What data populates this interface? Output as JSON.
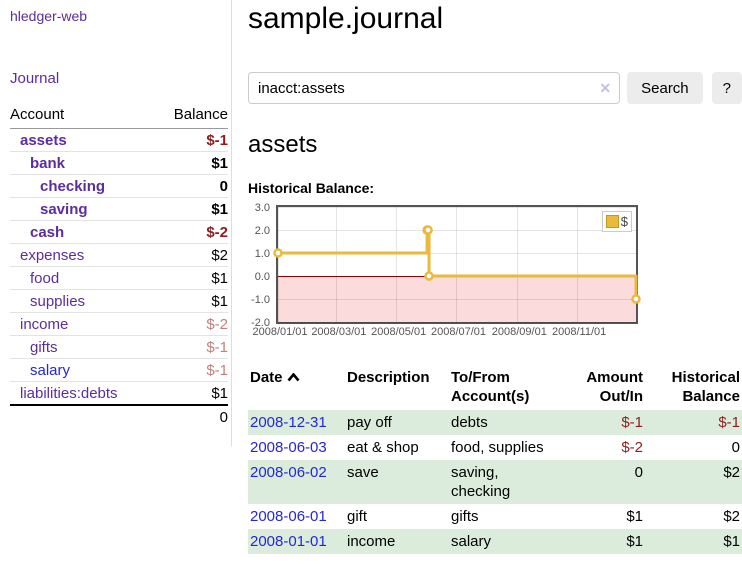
{
  "theme": {
    "link_purple": "#5c2d9e",
    "link_blue": "#2525dd",
    "negative_strong": "#8f1d1d",
    "negative_dim": "#c2807c",
    "row_shade_green": "#dcecdc",
    "chart_gold": "#e9ba3d",
    "chart_negative_fill": "#fbdbdb",
    "chart_zero_line": "#8b0000"
  },
  "sidebar": {
    "brand": "hledger-web",
    "journal_link": "Journal",
    "accounts_table": {
      "headers": {
        "account": "Account",
        "balance": "Balance"
      },
      "accounts": [
        {
          "name": "assets",
          "indent": 1,
          "bold": true,
          "blue": false,
          "balance": "$-1",
          "balance_style": "negstrong"
        },
        {
          "name": "bank",
          "indent": 2,
          "bold": true,
          "blue": false,
          "balance": "$1",
          "balance_style": "pos"
        },
        {
          "name": "checking",
          "indent": 3,
          "bold": true,
          "blue": false,
          "balance": "0",
          "balance_style": "pos"
        },
        {
          "name": "saving",
          "indent": 3,
          "bold": true,
          "blue": false,
          "balance": "$1",
          "balance_style": "pos"
        },
        {
          "name": "cash",
          "indent": 2,
          "bold": true,
          "blue": false,
          "balance": "$-2",
          "balance_style": "negstrong"
        },
        {
          "name": "expenses",
          "indent": 1,
          "bold": false,
          "blue": false,
          "balance": "$2",
          "balance_style": "pos"
        },
        {
          "name": "food",
          "indent": 2,
          "bold": false,
          "blue": false,
          "balance": "$1",
          "balance_style": "pos"
        },
        {
          "name": "supplies",
          "indent": 2,
          "bold": false,
          "blue": false,
          "balance": "$1",
          "balance_style": "pos"
        },
        {
          "name": "income",
          "indent": 1,
          "bold": false,
          "blue": false,
          "balance": "$-2",
          "balance_style": "negdim"
        },
        {
          "name": "gifts",
          "indent": 2,
          "bold": false,
          "blue": false,
          "balance": "$-1",
          "balance_style": "negdim"
        },
        {
          "name": "salary",
          "indent": 2,
          "bold": false,
          "blue": true,
          "balance": "$-1",
          "balance_style": "negdim"
        },
        {
          "name": "liabilities:debts",
          "indent": 1,
          "bold": false,
          "blue": false,
          "balance": "$1",
          "balance_style": "pos"
        }
      ],
      "total": "0"
    }
  },
  "header": {
    "title": "sample.journal"
  },
  "search": {
    "query": "inacct:assets",
    "clear_icon": "✕",
    "button_label": "Search",
    "help_button_label": "?"
  },
  "account_page": {
    "heading": "assets",
    "chart_label": "Historical Balance:"
  },
  "chart_data": {
    "type": "line",
    "title": "Historical Balance:",
    "legend": {
      "label": "$",
      "position": "top-right"
    },
    "xlim": [
      0,
      365
    ],
    "ylim": [
      -2,
      3
    ],
    "grid": true,
    "series": [
      {
        "name": "$",
        "step": true,
        "points": [
          {
            "date": "2008-01-01",
            "day": 0,
            "value": 1
          },
          {
            "date": "2008-06-01",
            "day": 152,
            "value": 2
          },
          {
            "date": "2008-06-02",
            "day": 153,
            "value": 2
          },
          {
            "date": "2008-06-03",
            "day": 154,
            "value": 0
          },
          {
            "date": "2008-12-31",
            "day": 365,
            "value": -1
          }
        ]
      }
    ],
    "x_ticks": [
      {
        "day": 0,
        "label": "2008/01/01"
      },
      {
        "day": 60,
        "label": "2008/03/01"
      },
      {
        "day": 121,
        "label": "2008/05/01"
      },
      {
        "day": 182,
        "label": "2008/07/01"
      },
      {
        "day": 244,
        "label": "2008/09/01"
      },
      {
        "day": 305,
        "label": "2008/11/01"
      }
    ],
    "y_ticks": [
      3.0,
      2.0,
      1.0,
      0.0,
      -1.0,
      -2.0
    ],
    "colors": {
      "line": "#e9ba3d",
      "marker_fill": "#ffffff",
      "negative_fill": "#fbdbdb",
      "zero_line": "#8b0000",
      "border": "#545454"
    }
  },
  "register": {
    "headers": {
      "date": "Date",
      "description": "Description",
      "accounts": "To/From\nAccount(s)",
      "amount": "Amount\nOut/In",
      "balance": "Historical\nBalance"
    },
    "rows": [
      {
        "date": "2008-12-31",
        "description": "pay off",
        "accounts": "debts",
        "amount": "$-1",
        "amount_style": "negstrong",
        "balance": "$-1",
        "balance_style": "negstrong",
        "shaded": true
      },
      {
        "date": "2008-06-03",
        "description": "eat & shop",
        "accounts": "food, supplies",
        "amount": "$-2",
        "amount_style": "negstrong",
        "balance": "0",
        "balance_style": "pos",
        "shaded": false
      },
      {
        "date": "2008-06-02",
        "description": "save",
        "accounts": "saving,\nchecking",
        "amount": "0",
        "amount_style": "pos",
        "balance": "$2",
        "balance_style": "pos",
        "shaded": true
      },
      {
        "date": "2008-06-01",
        "description": "gift",
        "accounts": "gifts",
        "amount": "$1",
        "amount_style": "pos",
        "balance": "$2",
        "balance_style": "pos",
        "shaded": false
      },
      {
        "date": "2008-01-01",
        "description": "income",
        "accounts": "salary",
        "amount": "$1",
        "amount_style": "pos",
        "balance": "$1",
        "balance_style": "pos",
        "shaded": true
      }
    ]
  }
}
